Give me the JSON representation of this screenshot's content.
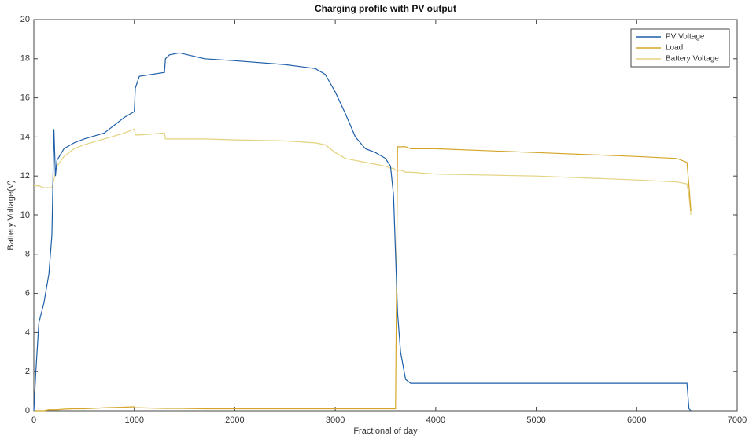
{
  "chart_data": {
    "type": "line",
    "title": "Charging profile with PV output",
    "x_label": "Fractional of day",
    "y_label": "Battery Voltage(V)",
    "x": [
      0,
      20,
      50,
      100,
      150,
      180,
      200,
      215,
      230,
      300,
      400,
      500,
      700,
      900,
      1000,
      1010,
      1050,
      1300,
      1310,
      1350,
      1450,
      1700,
      2000,
      2500,
      2800,
      2900,
      3000,
      3100,
      3200,
      3300,
      3400,
      3500,
      3550,
      3580,
      3600,
      3620,
      3650,
      3700,
      3750,
      4000,
      5000,
      6000,
      6400,
      6500,
      6520,
      6540
    ],
    "series": [
      {
        "name": "PV Voltage",
        "color": "#1f5fa8",
        "values": [
          0,
          2,
          4.5,
          5.5,
          7,
          9,
          14.4,
          12,
          12.8,
          13.4,
          13.7,
          13.9,
          14.2,
          15,
          15.3,
          16.5,
          17.1,
          17.3,
          18,
          18.2,
          18.3,
          18,
          17.9,
          17.7,
          17.5,
          17.2,
          16.3,
          15.2,
          14,
          13.4,
          13.2,
          12.9,
          12.5,
          11,
          8,
          5,
          3,
          1.6,
          1.4,
          1.4,
          1.4,
          1.4,
          1.4,
          1.4,
          0.1,
          0
        ]
      },
      {
        "name": "Load",
        "color": "#d4a62a",
        "values": [
          0,
          0,
          0,
          0,
          0.05,
          0.05,
          0.05,
          0.05,
          0.05,
          0.08,
          0.1,
          0.1,
          0.15,
          0.18,
          0.2,
          0.15,
          0.15,
          0.12,
          0.12,
          0.12,
          0.12,
          0.1,
          0.1,
          0.1,
          0.1,
          0.1,
          0.1,
          0.1,
          0.1,
          0.1,
          0.1,
          0.1,
          0.1,
          0.1,
          0.1,
          13.5,
          13.5,
          13.5,
          13.4,
          13.4,
          13.2,
          13,
          12.9,
          12.7,
          11.5,
          10.2
        ]
      },
      {
        "name": "Battery Voltage",
        "color": "#e3d27e",
        "values": [
          11.5,
          11.5,
          11.5,
          11.4,
          11.4,
          11.4,
          11.8,
          12.2,
          12.5,
          13,
          13.4,
          13.6,
          13.9,
          14.2,
          14.4,
          14.1,
          14.1,
          14.2,
          13.9,
          13.9,
          13.9,
          13.9,
          13.85,
          13.8,
          13.7,
          13.6,
          13.2,
          12.9,
          12.8,
          12.7,
          12.6,
          12.5,
          12.4,
          12.4,
          12.3,
          12.3,
          12.3,
          12.2,
          12.2,
          12.1,
          12,
          11.8,
          11.7,
          11.6,
          11,
          10
        ]
      }
    ],
    "xlim": [
      0,
      7000
    ],
    "xticks": [
      0,
      1000,
      2000,
      3000,
      4000,
      5000,
      6000,
      7000
    ],
    "ylim": [
      0,
      20
    ],
    "yticks": [
      0,
      2,
      4,
      6,
      8,
      10,
      12,
      14,
      16,
      18,
      20
    ],
    "grid": false,
    "legend": "top-right"
  }
}
